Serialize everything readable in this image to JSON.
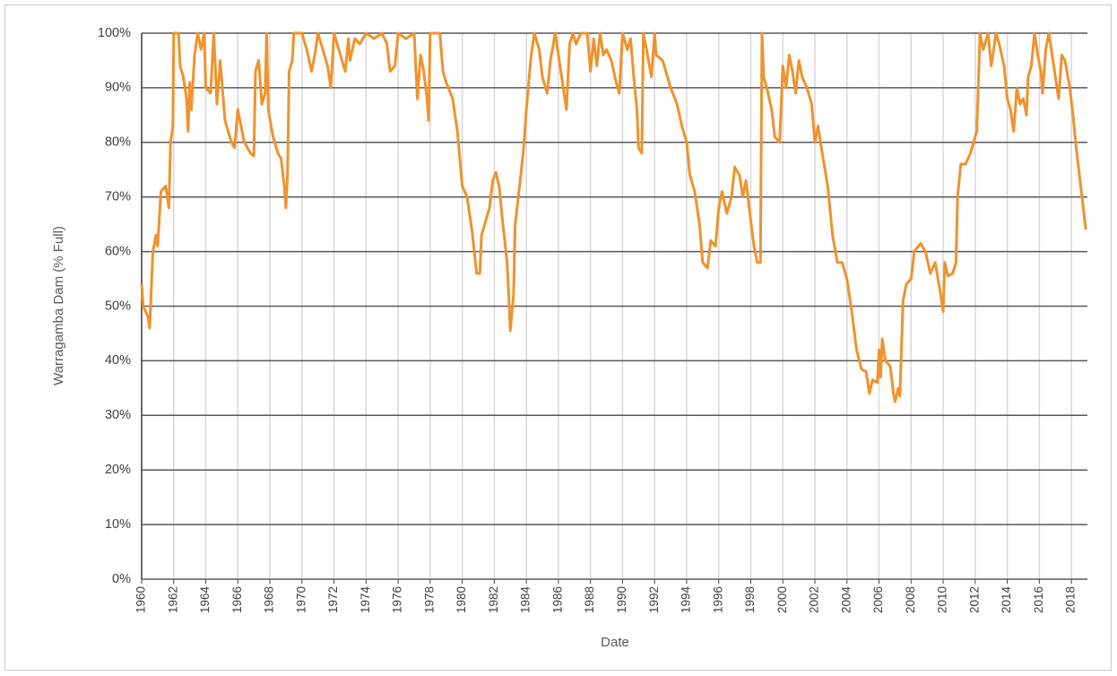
{
  "chart_data": {
    "type": "line",
    "x_label": "Date",
    "y_label": "Warragamba Dam (% Full)",
    "color": "#f0922d",
    "grid": true,
    "xlim": [
      1960,
      2019
    ],
    "xticks": [
      1960,
      1962,
      1964,
      1966,
      1968,
      1970,
      1972,
      1974,
      1976,
      1978,
      1980,
      1982,
      1984,
      1986,
      1988,
      1990,
      1992,
      1994,
      1996,
      1998,
      2000,
      2002,
      2004,
      2006,
      2008,
      2010,
      2012,
      2014,
      2016,
      2018
    ],
    "ylim": [
      0,
      100
    ],
    "yticks": [
      {
        "value": 0,
        "label": "0%"
      },
      {
        "value": 10,
        "label": "10%"
      },
      {
        "value": 20,
        "label": "20%"
      },
      {
        "value": 30,
        "label": "30%"
      },
      {
        "value": 40,
        "label": "40%"
      },
      {
        "value": 50,
        "label": "50%"
      },
      {
        "value": 60,
        "label": "60%"
      },
      {
        "value": 70,
        "label": "70%"
      },
      {
        "value": 80,
        "label": "80%"
      },
      {
        "value": 90,
        "label": "90%"
      },
      {
        "value": 100,
        "label": "100%"
      }
    ],
    "x": [
      1960,
      1960.1,
      1960.4,
      1960.5,
      1960.7,
      1960.9,
      1961.0,
      1961.2,
      1961.5,
      1961.7,
      1961.8,
      1961.95,
      1962.0,
      1962.3,
      1962.4,
      1962.6,
      1962.8,
      1962.9,
      1963.0,
      1963.1,
      1963.3,
      1963.5,
      1963.7,
      1963.9,
      1964.0,
      1964.3,
      1964.5,
      1964.7,
      1964.9,
      1965.2,
      1965.6,
      1965.8,
      1966.0,
      1966.4,
      1966.8,
      1967.0,
      1967.1,
      1967.3,
      1967.5,
      1967.7,
      1967.8,
      1967.9,
      1968.2,
      1968.5,
      1968.7,
      1968.9,
      1969.0,
      1969.1,
      1969.2,
      1969.4,
      1969.5,
      1970.0,
      1970.3,
      1970.6,
      1970.8,
      1971.0,
      1971.3,
      1971.6,
      1971.8,
      1972.0,
      1972.4,
      1972.7,
      1972.9,
      1973.0,
      1973.3,
      1973.6,
      1974.0,
      1974.5,
      1975.0,
      1975.3,
      1975.5,
      1975.8,
      1976.0,
      1976.5,
      1977.0,
      1977.2,
      1977.4,
      1977.6,
      1977.8,
      1977.9,
      1978.0,
      1978.6,
      1978.8,
      1979.0,
      1979.4,
      1979.7,
      1980.0,
      1980.3,
      1980.6,
      1980.9,
      1981.1,
      1981.2,
      1981.5,
      1981.7,
      1981.9,
      1982.1,
      1982.3,
      1982.5,
      1982.8,
      1982.9,
      1983.0,
      1983.2,
      1983.3,
      1983.5,
      1983.8,
      1984.0,
      1984.3,
      1984.5,
      1984.8,
      1985.0,
      1985.3,
      1985.5,
      1985.8,
      1986.0,
      1986.3,
      1986.5,
      1986.7,
      1986.9,
      1987.1,
      1987.4,
      1987.8,
      1988.0,
      1988.2,
      1988.4,
      1988.6,
      1988.8,
      1989.0,
      1989.3,
      1989.6,
      1989.8,
      1990.0,
      1990.3,
      1990.5,
      1990.7,
      1990.9,
      1991.0,
      1991.2,
      1991.3,
      1991.5,
      1991.8,
      1992.0,
      1992.1,
      1992.5,
      1992.8,
      1993.0,
      1993.4,
      1993.7,
      1994.0,
      1994.2,
      1994.5,
      1994.8,
      1995.0,
      1995.3,
      1995.5,
      1995.8,
      1996.0,
      1996.2,
      1996.5,
      1996.8,
      1997.0,
      1997.3,
      1997.5,
      1997.7,
      1997.9,
      1998.2,
      1998.4,
      1998.6,
      1998.7,
      1998.8,
      1999.0,
      1999.3,
      1999.5,
      1999.8,
      2000.0,
      2000.2,
      2000.4,
      2000.6,
      2000.8,
      2001.0,
      2001.2,
      2001.5,
      2001.8,
      2002.0,
      2002.2,
      2002.4,
      2002.8,
      2003.1,
      2003.4,
      2003.7,
      2004.0,
      2004.3,
      2004.6,
      2004.9,
      2005.2,
      2005.4,
      2005.6,
      2005.9,
      2006.0,
      2006.1,
      2006.2,
      2006.4,
      2006.7,
      2006.9,
      2007.0,
      2007.2,
      2007.3,
      2007.5,
      2007.7,
      2008.0,
      2008.2,
      2008.6,
      2008.9,
      2009.2,
      2009.5,
      2009.8,
      2010.0,
      2010.1,
      2010.3,
      2010.6,
      2010.8,
      2010.9,
      2011.1,
      2011.4,
      2011.7,
      2012.0,
      2012.1,
      2012.3,
      2012.5,
      2012.8,
      2013.0,
      2013.3,
      2013.5,
      2013.8,
      2014.0,
      2014.2,
      2014.4,
      2014.6,
      2014.8,
      2015.0,
      2015.2,
      2015.3,
      2015.5,
      2015.7,
      2015.9,
      2016.1,
      2016.2,
      2016.4,
      2016.6,
      2016.8,
      2017.0,
      2017.2,
      2017.4,
      2017.6,
      2017.9,
      2018.1,
      2018.3,
      2018.5,
      2018.7,
      2018.9
    ],
    "values": [
      54,
      50,
      48,
      46,
      60,
      63,
      61,
      71,
      72,
      68,
      80,
      83,
      100,
      100,
      94,
      92,
      88,
      82,
      91,
      86,
      96,
      100,
      97,
      100,
      90,
      89,
      100,
      87,
      95,
      84,
      80,
      79,
      86,
      80,
      78,
      77.5,
      93,
      95,
      87,
      89,
      100,
      86,
      81,
      78,
      77,
      72,
      68,
      74,
      93,
      95,
      100,
      100,
      97,
      93,
      96,
      100,
      97,
      94,
      90,
      100,
      96,
      93,
      99,
      95,
      99,
      98,
      100,
      99,
      100,
      98,
      93,
      94,
      100,
      99,
      100,
      88,
      96,
      93,
      88,
      84,
      100,
      100,
      93,
      91,
      88,
      82,
      72,
      70,
      64,
      56,
      56,
      63,
      66,
      68,
      73,
      74.5,
      72,
      66,
      58,
      52,
      45.5,
      52,
      65,
      70,
      78,
      86,
      96,
      100,
      97,
      92,
      89,
      95,
      100,
      96,
      90,
      86,
      98,
      100,
      98,
      100,
      100,
      93,
      99,
      94,
      100,
      96,
      97,
      95,
      91,
      89,
      100,
      97,
      99,
      92,
      86,
      79,
      78,
      100,
      97,
      92,
      100,
      96,
      95,
      92,
      90,
      87,
      83,
      80,
      74,
      71,
      65,
      58,
      57,
      62,
      61,
      68,
      71,
      67,
      70,
      75.5,
      74,
      70,
      73,
      68,
      61,
      58,
      58,
      100,
      92,
      90,
      86,
      81,
      80,
      94,
      90,
      96,
      93,
      89,
      95,
      92,
      90,
      87,
      80,
      83,
      79,
      72,
      63,
      58,
      58,
      55,
      49,
      42,
      38.5,
      38,
      34,
      36.5,
      36,
      42,
      37,
      44,
      40,
      39,
      34,
      32.5,
      35,
      33.5,
      51,
      54,
      55,
      60,
      61.5,
      60,
      56,
      58,
      53,
      49,
      58,
      55.5,
      56,
      58,
      70,
      76,
      76,
      78,
      81,
      82,
      100,
      97,
      100,
      94,
      100,
      98,
      94,
      88,
      86,
      82,
      90,
      87,
      88,
      85,
      92,
      94,
      100,
      96,
      93,
      89,
      97,
      100,
      96,
      92,
      88,
      96,
      95,
      90,
      85,
      79,
      74,
      69,
      64
    ]
  }
}
